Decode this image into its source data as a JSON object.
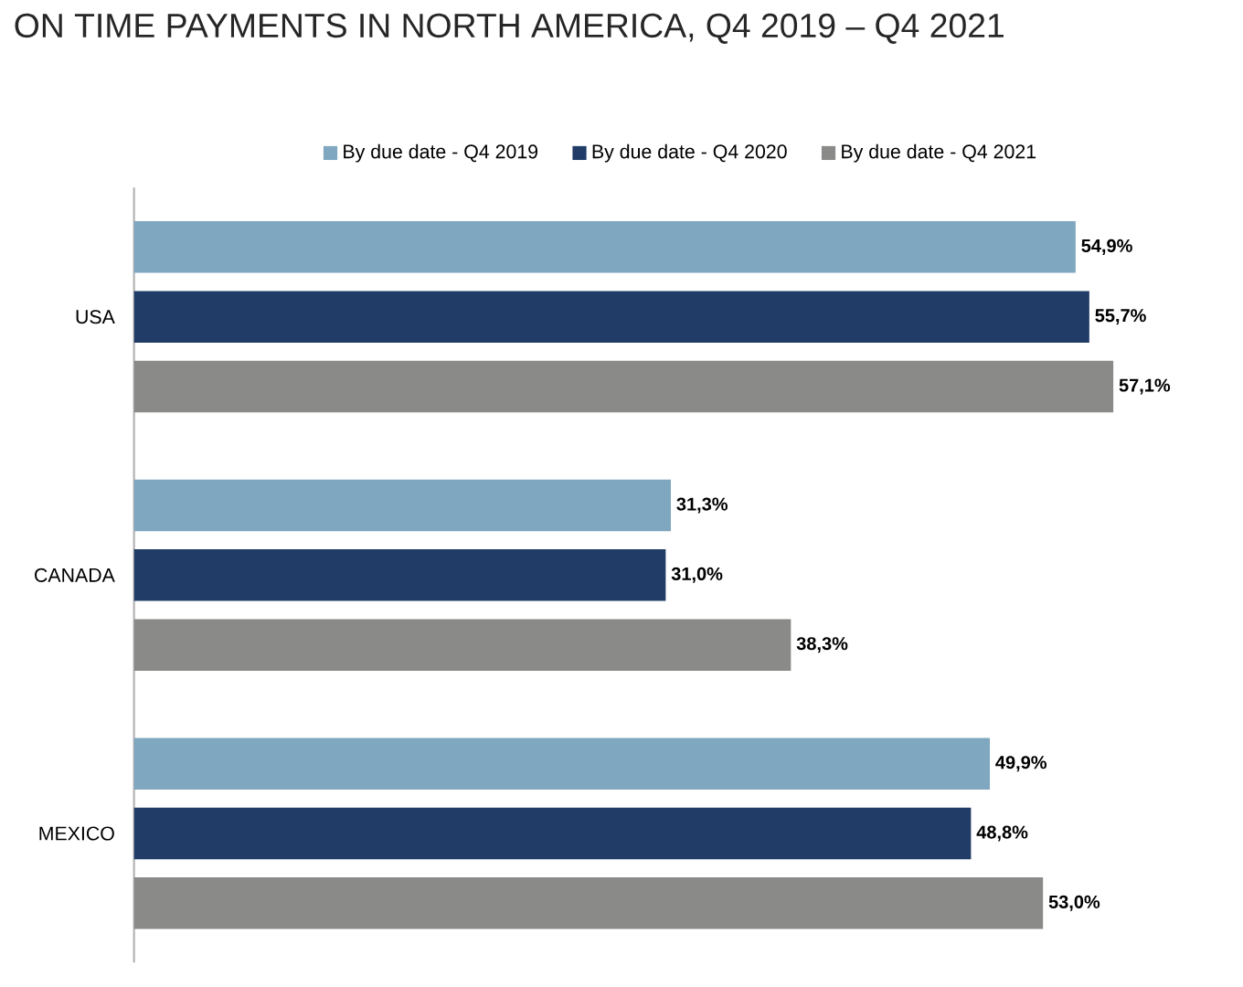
{
  "chart_data": {
    "type": "bar",
    "orientation": "horizontal",
    "title": "ON TIME PAYMENTS IN NORTH AMERICA, Q4 2019 – Q4 2021",
    "categories": [
      "USA",
      "CANADA",
      "MEXICO"
    ],
    "series": [
      {
        "name": "By due date - Q4 2019",
        "color": "#7fa7bf",
        "values": [
          54.9,
          31.3,
          49.9
        ],
        "value_labels": [
          "54,9%",
          "31,3%",
          "49,9%"
        ]
      },
      {
        "name": "By due date - Q4 2020",
        "color": "#213c66",
        "values": [
          55.7,
          31.0,
          48.8
        ],
        "value_labels": [
          "55,7%",
          "31,0%",
          "48,8%"
        ]
      },
      {
        "name": "By due date - Q4 2021",
        "color": "#8a8a88",
        "values": [
          57.1,
          38.3,
          53.0
        ],
        "value_labels": [
          "57,1%",
          "38,3%",
          "53,0%"
        ]
      }
    ],
    "legend": "top"
  }
}
